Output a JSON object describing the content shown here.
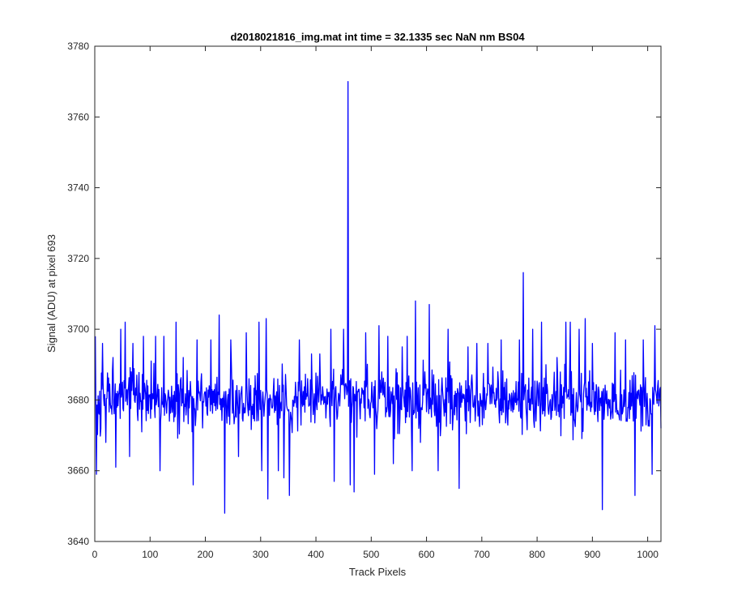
{
  "chart_data": {
    "type": "line",
    "title": "d2018021816_img.mat int time = 32.1335 sec  NaN nm BS04",
    "xlabel": "Track Pixels",
    "ylabel": "Signal (ADU) at pixel 693",
    "xlim": [
      0,
      1024
    ],
    "ylim": [
      3640,
      3780
    ],
    "xticks": [
      0,
      100,
      200,
      300,
      400,
      500,
      600,
      700,
      800,
      900,
      1000
    ],
    "yticks": [
      3640,
      3660,
      3680,
      3700,
      3720,
      3740,
      3760,
      3780
    ],
    "grid": false,
    "legend": "none",
    "series": [
      {
        "color": "#0000ff",
        "baseline": 3680,
        "noise_amplitude": 9,
        "x_start": 1,
        "x_end": 1024,
        "points": [
          [
            1,
            3698
          ],
          [
            3,
            3659
          ],
          [
            8,
            3676
          ],
          [
            14,
            3696
          ],
          [
            20,
            3668
          ],
          [
            33,
            3692
          ],
          [
            38,
            3661
          ],
          [
            47,
            3700
          ],
          [
            55,
            3702
          ],
          [
            63,
            3664
          ],
          [
            69,
            3696
          ],
          [
            88,
            3698
          ],
          [
            102,
            3691
          ],
          [
            110,
            3698
          ],
          [
            118,
            3660
          ],
          [
            125,
            3698
          ],
          [
            135,
            3674
          ],
          [
            147,
            3702
          ],
          [
            160,
            3692
          ],
          [
            178,
            3656
          ],
          [
            185,
            3697
          ],
          [
            210,
            3697
          ],
          [
            225,
            3704
          ],
          [
            235,
            3648
          ],
          [
            246,
            3697
          ],
          [
            260,
            3664
          ],
          [
            274,
            3699
          ],
          [
            297,
            3702
          ],
          [
            302,
            3660
          ],
          [
            310,
            3703
          ],
          [
            313,
            3652
          ],
          [
            332,
            3660
          ],
          [
            342,
            3658
          ],
          [
            352,
            3653
          ],
          [
            370,
            3697
          ],
          [
            392,
            3693
          ],
          [
            407,
            3693
          ],
          [
            427,
            3700
          ],
          [
            433,
            3657
          ],
          [
            450,
            3700
          ],
          [
            458,
            3770
          ],
          [
            462,
            3656
          ],
          [
            469,
            3654
          ],
          [
            490,
            3699
          ],
          [
            506,
            3659
          ],
          [
            514,
            3701
          ],
          [
            530,
            3698
          ],
          [
            540,
            3662
          ],
          [
            556,
            3695
          ],
          [
            565,
            3698
          ],
          [
            574,
            3660
          ],
          [
            580,
            3708
          ],
          [
            589,
            3668
          ],
          [
            605,
            3707
          ],
          [
            621,
            3660
          ],
          [
            639,
            3700
          ],
          [
            659,
            3655
          ],
          [
            675,
            3695
          ],
          [
            691,
            3696
          ],
          [
            711,
            3696
          ],
          [
            735,
            3697
          ],
          [
            768,
            3697
          ],
          [
            775,
            3716
          ],
          [
            792,
            3700
          ],
          [
            808,
            3702
          ],
          [
            836,
            3692
          ],
          [
            852,
            3702
          ],
          [
            860,
            3702
          ],
          [
            876,
            3700
          ],
          [
            887,
            3703
          ],
          [
            900,
            3696
          ],
          [
            918,
            3649
          ],
          [
            941,
            3699
          ],
          [
            960,
            3697
          ],
          [
            977,
            3653
          ],
          [
            992,
            3697
          ],
          [
            1008,
            3659
          ],
          [
            1013,
            3701
          ],
          [
            1024,
            3672
          ]
        ]
      }
    ]
  }
}
